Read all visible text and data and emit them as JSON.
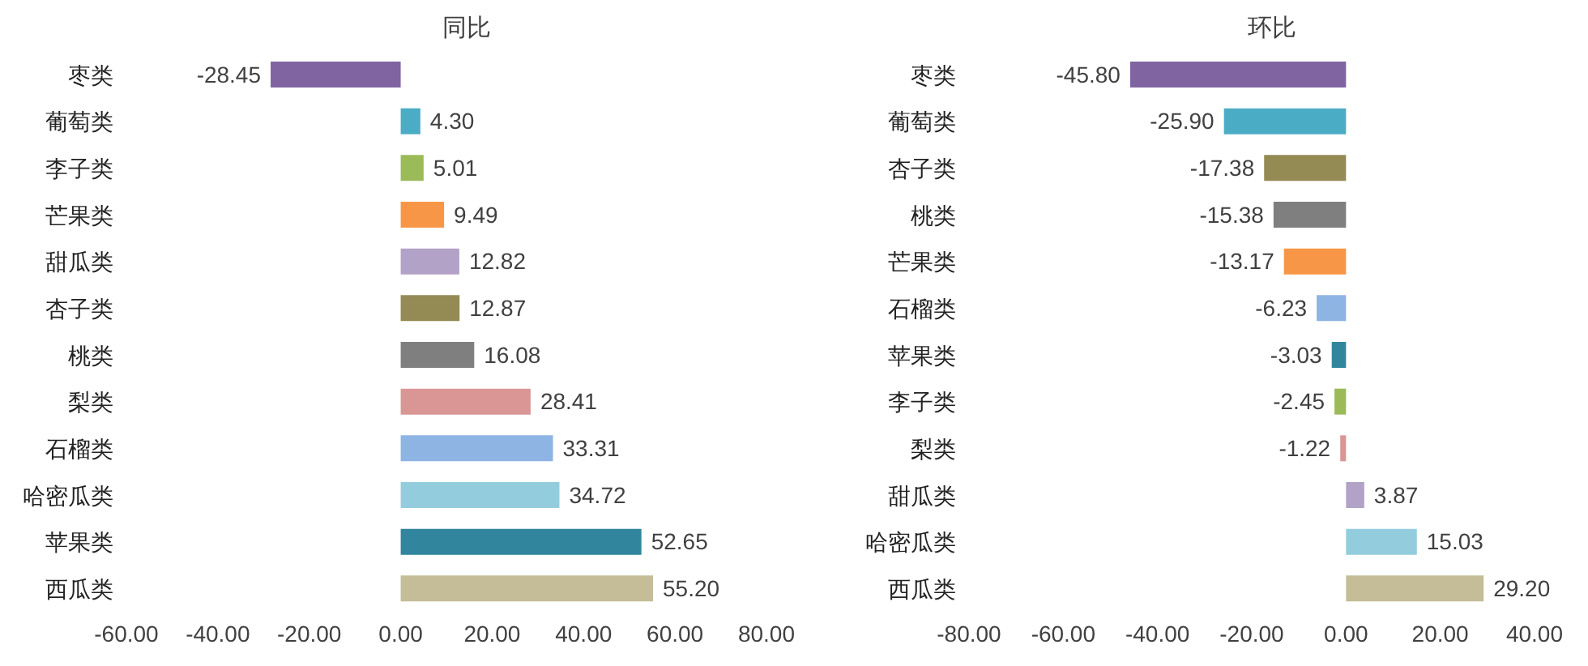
{
  "chart_data": [
    {
      "type": "bar",
      "orientation": "horizontal",
      "title": "同比",
      "categories": [
        "枣类",
        "葡萄类",
        "李子类",
        "芒果类",
        "甜瓜类",
        "杏子类",
        "桃类",
        "梨类",
        "石榴类",
        "哈密瓜类",
        "苹果类",
        "西瓜类"
      ],
      "values": [
        -28.45,
        4.3,
        5.01,
        9.49,
        12.82,
        12.87,
        16.08,
        28.41,
        33.31,
        34.72,
        52.65,
        55.2
      ],
      "value_labels": [
        "-28.45",
        "4.30",
        "5.01",
        "9.49",
        "12.82",
        "12.87",
        "16.08",
        "28.41",
        "33.31",
        "34.72",
        "52.65",
        "55.20"
      ],
      "colors": [
        "#8064a2",
        "#4bacc6",
        "#9bbb59",
        "#f79646",
        "#b3a2c7",
        "#948a54",
        "#7f7f7f",
        "#d99694",
        "#8eb4e3",
        "#93cddd",
        "#31859c",
        "#c4bd97"
      ],
      "xlim": [
        -60,
        80
      ],
      "xticks": [
        {
          "value": -60,
          "label": "-60.00"
        },
        {
          "value": -40,
          "label": "-40.00"
        },
        {
          "value": -20,
          "label": "-20.00"
        },
        {
          "value": 0,
          "label": "0.00"
        },
        {
          "value": 20,
          "label": "20.00"
        },
        {
          "value": 40,
          "label": "40.00"
        },
        {
          "value": 60,
          "label": "60.00"
        },
        {
          "value": 80,
          "label": "80.00"
        }
      ],
      "grid": false,
      "legend": false
    },
    {
      "type": "bar",
      "orientation": "horizontal",
      "title": "环比",
      "categories": [
        "枣类",
        "葡萄类",
        "杏子类",
        "桃类",
        "芒果类",
        "石榴类",
        "苹果类",
        "李子类",
        "梨类",
        "甜瓜类",
        "哈密瓜类",
        "西瓜类"
      ],
      "values": [
        -45.8,
        -25.9,
        -17.38,
        -15.38,
        -13.17,
        -6.23,
        -3.03,
        -2.45,
        -1.22,
        3.87,
        15.03,
        29.2
      ],
      "value_labels": [
        "-45.80",
        "-25.90",
        "-17.38",
        "-15.38",
        "-13.17",
        "-6.23",
        "-3.03",
        "-2.45",
        "-1.22",
        "3.87",
        "15.03",
        "29.20"
      ],
      "colors": [
        "#8064a2",
        "#4bacc6",
        "#948a54",
        "#7f7f7f",
        "#f79646",
        "#8eb4e3",
        "#31859c",
        "#9bbb59",
        "#d99694",
        "#b3a2c7",
        "#93cddd",
        "#c4bd97"
      ],
      "xlim": [
        -80,
        40
      ],
      "xticks": [
        {
          "value": -80,
          "label": "-80.00"
        },
        {
          "value": -60,
          "label": "-60.00"
        },
        {
          "value": -40,
          "label": "-40.00"
        },
        {
          "value": -20,
          "label": "-20.00"
        },
        {
          "value": 0,
          "label": "0.00"
        },
        {
          "value": 20,
          "label": "20.00"
        },
        {
          "value": 40,
          "label": "40.00"
        }
      ],
      "grid": false,
      "legend": false
    }
  ]
}
